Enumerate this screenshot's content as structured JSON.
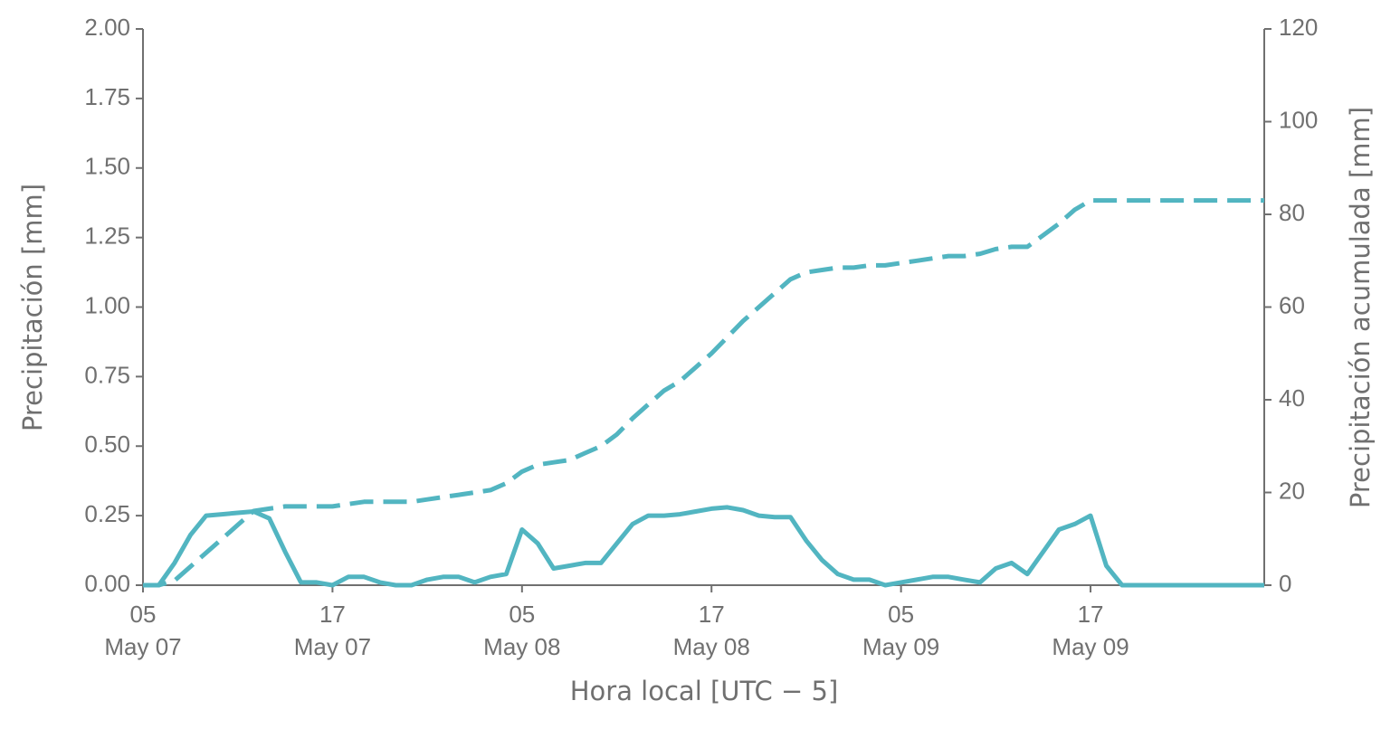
{
  "chart_data": {
    "type": "line",
    "xlabel": "Hora local [UTC − 5]",
    "ylabel": "Precipitación [mm]",
    "y2label": "Precipitación acumulada [mm]",
    "x": [
      "May 07 05:00",
      "May 07 06:00",
      "May 07 07:00",
      "May 07 08:00",
      "May 07 09:00",
      "May 07 10:00",
      "May 07 11:00",
      "May 07 12:00",
      "May 07 13:00",
      "May 07 14:00",
      "May 07 15:00",
      "May 07 16:00",
      "May 07 17:00",
      "May 07 18:00",
      "May 07 19:00",
      "May 07 20:00",
      "May 07 21:00",
      "May 07 22:00",
      "May 07 23:00",
      "May 08 00:00",
      "May 08 01:00",
      "May 08 02:00",
      "May 08 03:00",
      "May 08 04:00",
      "May 08 05:00",
      "May 08 06:00",
      "May 08 07:00",
      "May 08 08:00",
      "May 08 09:00",
      "May 08 10:00",
      "May 08 11:00",
      "May 08 12:00",
      "May 08 13:00",
      "May 08 14:00",
      "May 08 15:00",
      "May 08 16:00",
      "May 08 17:00",
      "May 08 18:00",
      "May 08 19:00",
      "May 08 20:00",
      "May 08 21:00",
      "May 08 22:00",
      "May 08 23:00",
      "May 09 00:00",
      "May 09 01:00",
      "May 09 02:00",
      "May 09 03:00",
      "May 09 04:00",
      "May 09 05:00",
      "May 09 06:00",
      "May 09 07:00",
      "May 09 08:00",
      "May 09 09:00",
      "May 09 10:00",
      "May 09 11:00",
      "May 09 12:00",
      "May 09 13:00",
      "May 09 14:00",
      "May 09 15:00",
      "May 09 16:00",
      "May 09 17:00",
      "May 09 18:00",
      "May 09 19:00",
      "May 09 20:00",
      "May 09 21:00",
      "May 09 22:00",
      "May 09 23:00",
      "May 10 00:00",
      "May 10 01:00",
      "May 10 02:00",
      "May 10 03:00",
      "May 10 04:00"
    ],
    "series": [
      {
        "color": "#52b5c1",
        "linestyle": "solid",
        "axis": "y",
        "values": [
          0,
          0,
          0.08,
          0.18,
          0.25,
          0.255,
          0.26,
          0.265,
          0.24,
          0.12,
          0.01,
          0.01,
          0,
          0.03,
          0.03,
          0.01,
          0,
          0,
          0.02,
          0.03,
          0.03,
          0.01,
          0.03,
          0.04,
          0.2,
          0.15,
          0.06,
          0.07,
          0.08,
          0.08,
          0.15,
          0.22,
          0.25,
          0.25,
          0.255,
          0.265,
          0.275,
          0.28,
          0.27,
          0.25,
          0.245,
          0.245,
          0.16,
          0.09,
          0.04,
          0.02,
          0.02,
          0,
          0.01,
          0.02,
          0.03,
          0.03,
          0.02,
          0.01,
          0.06,
          0.08,
          0.04,
          0.12,
          0.2,
          0.22,
          0.25,
          0.07,
          0,
          0,
          0,
          0,
          0,
          0,
          0,
          0,
          0,
          0
        ]
      },
      {
        "color": "#52b5c1",
        "linestyle": "dashed",
        "axis": "y2",
        "values": [
          0,
          0,
          1,
          4,
          7,
          10,
          13,
          16,
          16.5,
          17,
          17,
          17,
          17,
          17.5,
          18,
          18,
          18,
          18,
          18.5,
          19,
          19.5,
          20,
          20.5,
          22,
          24.5,
          26,
          26.5,
          27,
          28.5,
          30,
          32.5,
          36,
          39,
          42,
          44,
          47,
          50,
          53.5,
          57,
          60,
          63,
          66,
          67.5,
          68,
          68.5,
          68.5,
          69,
          69,
          69.5,
          70,
          70.5,
          71,
          71,
          71.5,
          72.5,
          73,
          73,
          75.5,
          78,
          81,
          83,
          83,
          83,
          83,
          83,
          83,
          83,
          83,
          83,
          83,
          83,
          83
        ]
      }
    ],
    "xlim": [
      "May 07 05:00",
      "May 10 04:00"
    ],
    "xticks": [
      {
        "value": "May 07 05:00",
        "label": [
          "05",
          "May 07"
        ]
      },
      {
        "value": "May 07 17:00",
        "label": [
          "17",
          "May 07"
        ]
      },
      {
        "value": "May 08 05:00",
        "label": [
          "05",
          "May 08"
        ]
      },
      {
        "value": "May 08 17:00",
        "label": [
          "17",
          "May 08"
        ]
      },
      {
        "value": "May 09 05:00",
        "label": [
          "05",
          "May 09"
        ]
      },
      {
        "value": "May 09 17:00",
        "label": [
          "17",
          "May 09"
        ]
      }
    ],
    "ylim": [
      0,
      2
    ],
    "yticks": [
      {
        "value": 0,
        "label": "0.00"
      },
      {
        "value": 0.25,
        "label": "0.25"
      },
      {
        "value": 0.5,
        "label": "0.50"
      },
      {
        "value": 0.75,
        "label": "0.75"
      },
      {
        "value": 1,
        "label": "1.00"
      },
      {
        "value": 1.25,
        "label": "1.25"
      },
      {
        "value": 1.5,
        "label": "1.50"
      },
      {
        "value": 1.75,
        "label": "1.75"
      },
      {
        "value": 2,
        "label": "2.00"
      }
    ],
    "y2lim": [
      0,
      120
    ],
    "y2ticks": [
      0,
      20,
      40,
      60,
      80,
      100,
      120
    ],
    "grid": false
  }
}
